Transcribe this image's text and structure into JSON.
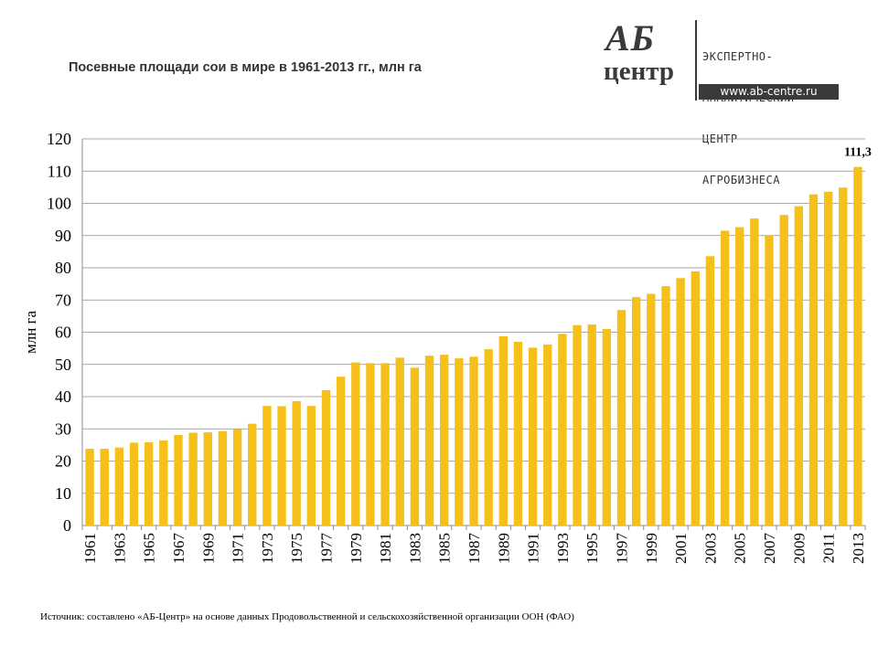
{
  "title": "Посевные площади сои в мире в 1961-2013 гг., млн га",
  "logo": {
    "mark_top": "АБ",
    "mark_bottom": "центр",
    "lines": [
      "ЭКСПЕРТНО-",
      "АНАЛИТИЧЕСКИЙ",
      "ЦЕНТР",
      "АГРОБИЗНЕСА"
    ],
    "url": "www.ab-centre.ru"
  },
  "source": "Источник: составлено «АБ-Центр» на основе данных Продовольственной и сельскохозяйственной организации ООН (ФАО)",
  "chart_data": {
    "type": "bar",
    "title": "Посевные площади сои в мире в 1961-2013 гг., млн га",
    "xlabel": "",
    "ylabel": "млн га",
    "ylim": [
      0,
      120
    ],
    "yticks": [
      0,
      10,
      20,
      30,
      40,
      50,
      60,
      70,
      80,
      90,
      100,
      110,
      120
    ],
    "grid": true,
    "bar_color": "#F5C01A",
    "categories": [
      "1961",
      "1962",
      "1963",
      "1964",
      "1965",
      "1966",
      "1967",
      "1968",
      "1969",
      "1970",
      "1971",
      "1972",
      "1973",
      "1974",
      "1975",
      "1976",
      "1977",
      "1978",
      "1979",
      "1980",
      "1981",
      "1982",
      "1983",
      "1984",
      "1985",
      "1986",
      "1987",
      "1988",
      "1989",
      "1990",
      "1991",
      "1992",
      "1993",
      "1994",
      "1995",
      "1996",
      "1997",
      "1998",
      "1999",
      "2000",
      "2001",
      "2002",
      "2003",
      "2004",
      "2005",
      "2006",
      "2007",
      "2008",
      "2009",
      "2010",
      "2011",
      "2012",
      "2013"
    ],
    "tick_labels_shown": [
      "1961",
      "1963",
      "1965",
      "1967",
      "1969",
      "1971",
      "1973",
      "1975",
      "1977",
      "1979",
      "1981",
      "1983",
      "1985",
      "1987",
      "1989",
      "1991",
      "1993",
      "1995",
      "1997",
      "1999",
      "2001",
      "2003",
      "2005",
      "2007",
      "2009",
      "2011",
      "2013"
    ],
    "values": [
      23.8,
      23.8,
      24.2,
      25.7,
      25.8,
      26.4,
      28.1,
      28.8,
      28.9,
      29.3,
      30.0,
      31.6,
      37.1,
      37.0,
      38.6,
      37.1,
      42.0,
      46.2,
      50.6,
      50.4,
      50.4,
      52.1,
      49.0,
      52.7,
      53.0,
      51.9,
      52.4,
      54.7,
      58.7,
      57.0,
      55.2,
      56.2,
      59.5,
      62.2,
      62.4,
      61.0,
      66.9,
      70.9,
      71.9,
      74.3,
      76.8,
      78.9,
      83.6,
      91.5,
      92.6,
      95.3,
      90.0,
      96.4,
      99.1,
      102.8,
      103.6,
      104.9,
      111.3
    ],
    "annotations": [
      {
        "category": "2013",
        "text": "111,3"
      }
    ]
  }
}
